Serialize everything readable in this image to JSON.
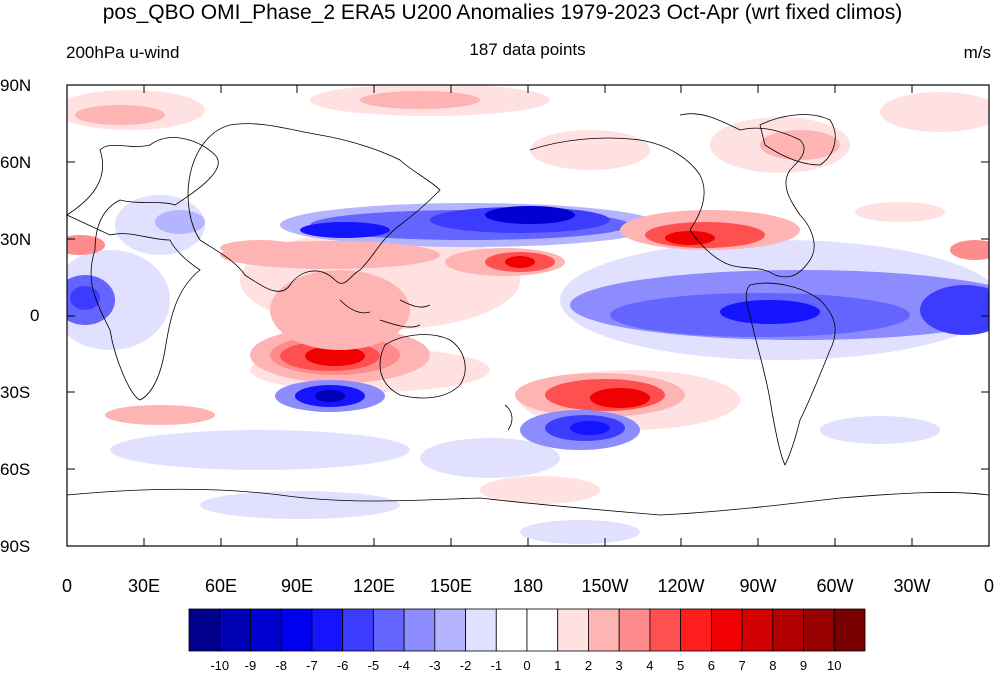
{
  "title": "pos_QBO OMI_Phase_2 ERA5 U200 Anomalies 1979-2023 Oct-Apr (wrt fixed climos)",
  "left_subtitle": "200hPa u-wind",
  "center_subtitle": "187 data points",
  "units": "m/s",
  "lat_labels": [
    "90N",
    "60N",
    "30N",
    "0",
    "30S",
    "60S",
    "90S"
  ],
  "lon_labels": [
    "0",
    "30E",
    "60E",
    "90E",
    "120E",
    "150E",
    "180",
    "150W",
    "120W",
    "90W",
    "60W",
    "30W",
    "0"
  ],
  "colorbar": {
    "labels": [
      "-10",
      "-9",
      "-8",
      "-7",
      "-6",
      "-5",
      "-4",
      "-3",
      "-2",
      "-1",
      "0",
      "1",
      "2",
      "3",
      "4",
      "5",
      "6",
      "7",
      "8",
      "9",
      "10"
    ],
    "colors": [
      "#00008c",
      "#0000b4",
      "#0000d2",
      "#0000f0",
      "#1414ff",
      "#3c3cff",
      "#6464ff",
      "#8c8cff",
      "#b4b4ff",
      "#e1e1ff",
      "#ffffff",
      "#ffffff",
      "#ffe1e1",
      "#ffb4b4",
      "#ff8c8c",
      "#ff5050",
      "#ff1e1e",
      "#f00000",
      "#d20000",
      "#b40000",
      "#960000",
      "#780000"
    ]
  },
  "anomaly_features": [
    {
      "name": "subtropical-jet-negative",
      "lon": 160,
      "lat": 30,
      "value": -7
    },
    {
      "name": "indian-ocean-positive",
      "lon": 100,
      "lat": -17,
      "value": 7
    },
    {
      "name": "south-pacific-positive",
      "lon": 215,
      "lat": -32,
      "value": 8
    },
    {
      "name": "south-pacific-negative",
      "lon": 205,
      "lat": -45,
      "value": -5
    },
    {
      "name": "australia-south-negative",
      "lon": 95,
      "lat": -33,
      "value": -7
    },
    {
      "name": "north-america-positive",
      "lon": 245,
      "lat": 33,
      "value": 6
    },
    {
      "name": "tropical-atlantic-negative",
      "lon": 285,
      "lat": 0,
      "value": -5
    },
    {
      "name": "north-pacific-positive",
      "lon": 175,
      "lat": 20,
      "value": 6
    }
  ]
}
